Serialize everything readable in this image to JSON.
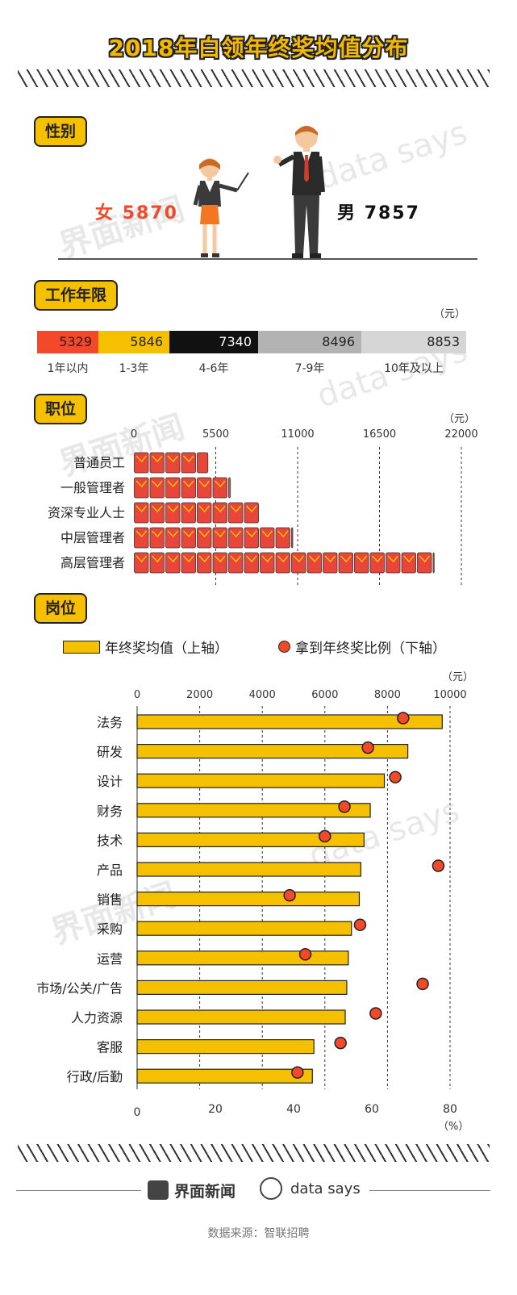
{
  "title": "2018年白领年终奖均值分布",
  "watermarks": [
    "界面新闻",
    "data says"
  ],
  "gender": {
    "tag": "性别",
    "female_label": "女",
    "female_value": "5870",
    "male_label": "男",
    "male_value": "7857"
  },
  "work_years": {
    "tag": "工作年限",
    "unit": "（元）",
    "segments": [
      {
        "label": "1年以内",
        "value": "5329",
        "color": "#f2492a"
      },
      {
        "label": "1-3年",
        "value": "5846",
        "color": "#f5c000"
      },
      {
        "label": "4-6年",
        "value": "7340",
        "color": "#111111"
      },
      {
        "label": "7-9年",
        "value": "8496",
        "color": "#b3b3b3"
      },
      {
        "label": "10年及以上",
        "value": "8853",
        "color": "#d6d6d6"
      }
    ]
  },
  "position_level": {
    "tag": "职位",
    "unit": "（元）",
    "ticks": [
      "0",
      "5500",
      "11000",
      "16500",
      "22000"
    ],
    "categories": [
      "普通员工",
      "一般管理者",
      "资深专业人士",
      "中层管理者",
      "高层管理者"
    ]
  },
  "job_function": {
    "tag": "岗位",
    "legend_bar": "年终奖均值（上轴）",
    "legend_dot": "拿到年终奖比例（下轴）",
    "top_unit": "（元）",
    "top_ticks": [
      "0",
      "2000",
      "4000",
      "6000",
      "8000",
      "10000"
    ],
    "bottom_ticks": [
      "0",
      "20",
      "40",
      "60",
      "80"
    ],
    "bottom_unit": "（%）",
    "categories": [
      "法务",
      "研发",
      "设计",
      "财务",
      "技术",
      "产品",
      "销售",
      "采购",
      "运营",
      "市场/公关/广告",
      "人力资源",
      "客服",
      "行政/后勤"
    ]
  },
  "footer": {
    "brand1": "界面新闻",
    "brand2": "data says",
    "source": "数据来源：智联招聘"
  },
  "chart_data": [
    {
      "type": "bar",
      "title": "工作年限",
      "categories": [
        "1年以内",
        "1-3年",
        "4-6年",
        "7-9年",
        "10年及以上"
      ],
      "values": [
        5329,
        5846,
        7340,
        8496,
        8853
      ],
      "ylabel": "（元）"
    },
    {
      "type": "bar",
      "title": "职位",
      "categories": [
        "普通员工",
        "一般管理者",
        "资深专业人士",
        "中层管理者",
        "高层管理者"
      ],
      "values": [
        5000,
        6500,
        8500,
        10700,
        20200
      ],
      "xlim": [
        0,
        22000
      ],
      "xlabel": "（元）"
    },
    {
      "type": "bar",
      "title": "岗位",
      "categories": [
        "法务",
        "研发",
        "设计",
        "财务",
        "技术",
        "产品",
        "销售",
        "采购",
        "运营",
        "市场/公关/广告",
        "人力资源",
        "客服",
        "行政/后勤"
      ],
      "series": [
        {
          "name": "年终奖均值（上轴）",
          "values": [
            9750,
            8650,
            7900,
            7450,
            7250,
            7150,
            7100,
            6850,
            6750,
            6700,
            6650,
            5650,
            5600
          ]
        },
        {
          "name": "拿到年终奖比例（下轴）",
          "values": [
            68,
            59,
            66,
            53,
            48,
            77,
            39,
            57,
            43,
            73,
            61,
            52,
            41
          ]
        }
      ],
      "xlim_top": [
        0,
        10000
      ],
      "xlim_bottom": [
        0,
        80
      ],
      "xlabel_top": "（元）",
      "xlabel_bottom": "（%）"
    }
  ]
}
